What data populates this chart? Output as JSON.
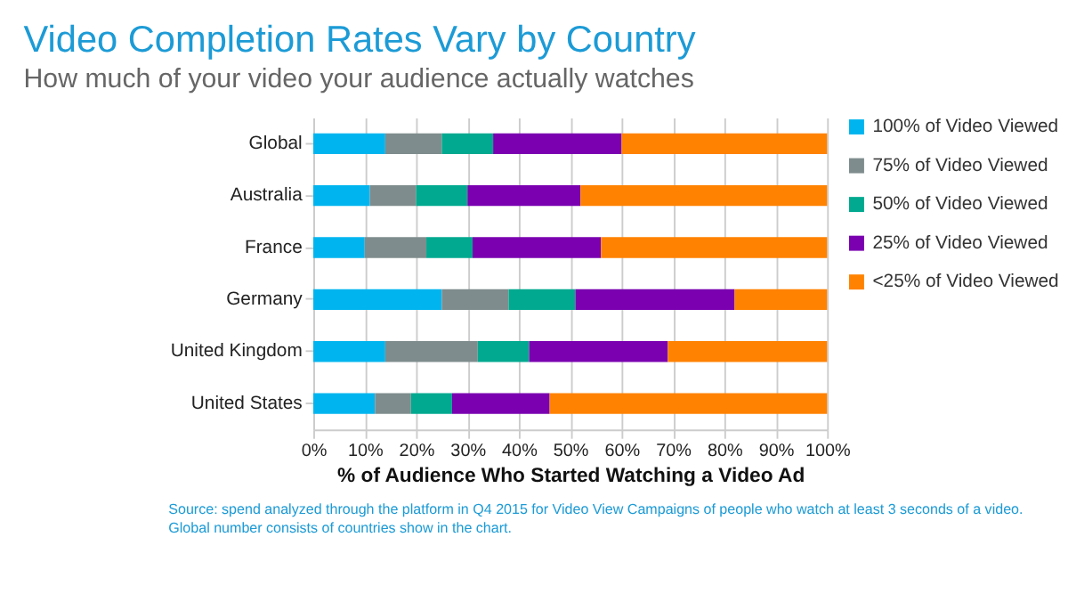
{
  "chart_data": {
    "type": "bar",
    "orientation": "horizontal",
    "stacked": true,
    "title": "Video Completion Rates Vary by Country",
    "subtitle": "How much of your video your audience actually watches",
    "xlabel": "% of Audience Who Started Watching a Video Ad",
    "categories": [
      "Global",
      "Australia",
      "France",
      "Germany",
      "United Kingdom",
      "United States"
    ],
    "series": [
      {
        "name": "100% of Video Viewed",
        "color": "#00b5ef",
        "values": [
          14,
          11,
          10,
          25,
          14,
          12
        ]
      },
      {
        "name": "75% of Video Viewed",
        "color": "#7f8c8d",
        "values": [
          11,
          9,
          12,
          13,
          18,
          7
        ]
      },
      {
        "name": "50% of Video Viewed",
        "color": "#00a98f",
        "values": [
          10,
          10,
          9,
          13,
          10,
          8
        ]
      },
      {
        "name": "25% of Video Viewed",
        "color": "#7a00b0",
        "values": [
          25,
          22,
          25,
          31,
          27,
          19
        ]
      },
      {
        "name": "<25% of Video Viewed",
        "color": "#ff8200",
        "values": [
          40,
          48,
          44,
          18,
          31,
          54
        ]
      }
    ],
    "xlim": [
      0,
      100
    ],
    "xticks": [
      {
        "value": 0,
        "label": "0%"
      },
      {
        "value": 10,
        "label": "10%"
      },
      {
        "value": 20,
        "label": "20%"
      },
      {
        "value": 30,
        "label": "30%"
      },
      {
        "value": 40,
        "label": "40%"
      },
      {
        "value": 50,
        "label": "50%"
      },
      {
        "value": 60,
        "label": "60%"
      },
      {
        "value": 70,
        "label": "70%"
      },
      {
        "value": 80,
        "label": "80%"
      },
      {
        "value": 90,
        "label": "90%"
      },
      {
        "value": 100,
        "label": "100%"
      }
    ],
    "grid": "x",
    "legend": "right",
    "annotations": [
      "Source: spend analyzed through the platform in Q4 2015 for Video View Campaigns of people who watch at least 3 seconds of a video.  Global number consists of countries show in the chart."
    ]
  }
}
